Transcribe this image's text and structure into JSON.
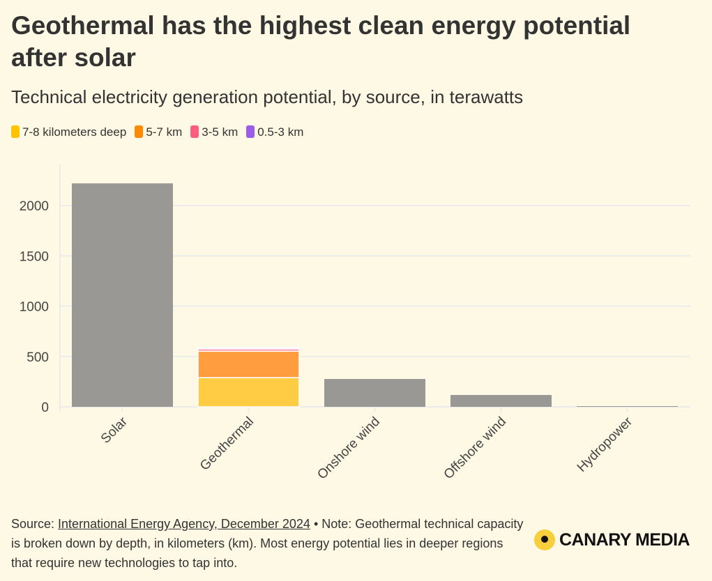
{
  "title": "Geothermal has the highest clean energy potential after solar",
  "subtitle": "Technical electricity generation potential, by source, in terawatts",
  "chart_data": {
    "type": "bar",
    "stacked": true,
    "title": "Geothermal has the highest clean energy potential after solar",
    "subtitle": "Technical electricity generation potential, by source, in terawatts",
    "categories": [
      "Solar",
      "Geothermal",
      "Onshore wind",
      "Offshore wind",
      "Hydropower"
    ],
    "ylim": [
      0,
      2300
    ],
    "yticks": [
      "0",
      "500",
      "1000",
      "1500",
      "2000"
    ],
    "grid": true,
    "legend_position": "top-left",
    "total_series": {
      "name": "Total",
      "color": "#9a9894",
      "values": [
        2220,
        null,
        277,
        118,
        7
      ]
    },
    "series": [
      {
        "name": "7-8 kilometers deep",
        "color": "#ffcc44",
        "values": [
          null,
          290,
          null,
          null,
          null
        ]
      },
      {
        "name": "5-7 km",
        "color": "#ff9d3f",
        "values": [
          null,
          263,
          null,
          null,
          null
        ]
      },
      {
        "name": "3-5 km",
        "color": "#ff7f95",
        "values": [
          null,
          22,
          null,
          null,
          null
        ]
      },
      {
        "name": "0.5-3 km",
        "color": "#d9b3f5",
        "values": [
          null,
          12,
          null,
          null,
          null
        ]
      }
    ]
  },
  "legend_colors": [
    "#ffc400",
    "#ff8a00",
    "#ff5f7e",
    "#9b5de5"
  ],
  "footer": {
    "source_label": "Source: ",
    "source_link": "International Energy Agency, December 2024",
    "note": " • Note: Geothermal technical capacity is broken down by depth, in kilometers (km). Most energy potential lies in deeper regions that require new technologies to tap into."
  },
  "logo": "CANARY MEDIA"
}
